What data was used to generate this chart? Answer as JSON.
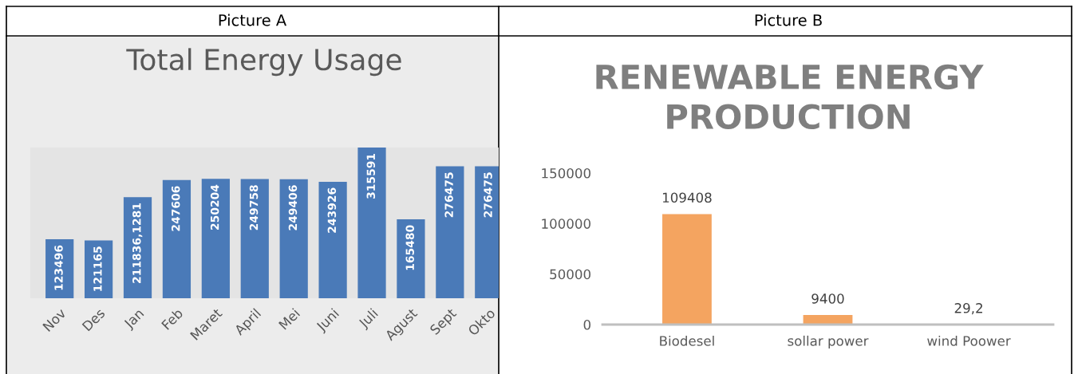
{
  "chart_data": [
    {
      "type": "bar",
      "title": "Total Energy Usage",
      "annotations": [
        "Picture A"
      ],
      "categories": [
        "Nov",
        "Des",
        "Jan",
        "Feb",
        "Maret",
        "April",
        "Mei",
        "Juni",
        "Juli",
        "Agust",
        "Sept",
        "Okto"
      ],
      "values": [
        123496,
        121165,
        211836.1281,
        247606,
        250204,
        249758,
        249406,
        243926,
        315591,
        165480,
        276475,
        276475
      ],
      "value_labels": [
        "123496",
        "121165",
        "211836,1281",
        "247606",
        "250204",
        "249758",
        "249406",
        "243926",
        "315591",
        "165480",
        "276475",
        "276475"
      ],
      "color": "#4a7ab8",
      "grid": false,
      "legend": false,
      "tick_labels": "x"
    },
    {
      "type": "bar",
      "title": "RENEWABLE ENERGY PRODUCTION",
      "annotations": [
        "Picture B"
      ],
      "categories": [
        "Biodesel",
        "sollar power",
        "wind Poower"
      ],
      "values": [
        109408,
        9400,
        29.2
      ],
      "value_labels": [
        "109408",
        "9400",
        "29,2"
      ],
      "color": "#f4a460",
      "ylim": [
        0,
        150000
      ],
      "yticks": [
        0,
        50000,
        100000,
        150000
      ],
      "grid": false,
      "legend": false
    }
  ]
}
